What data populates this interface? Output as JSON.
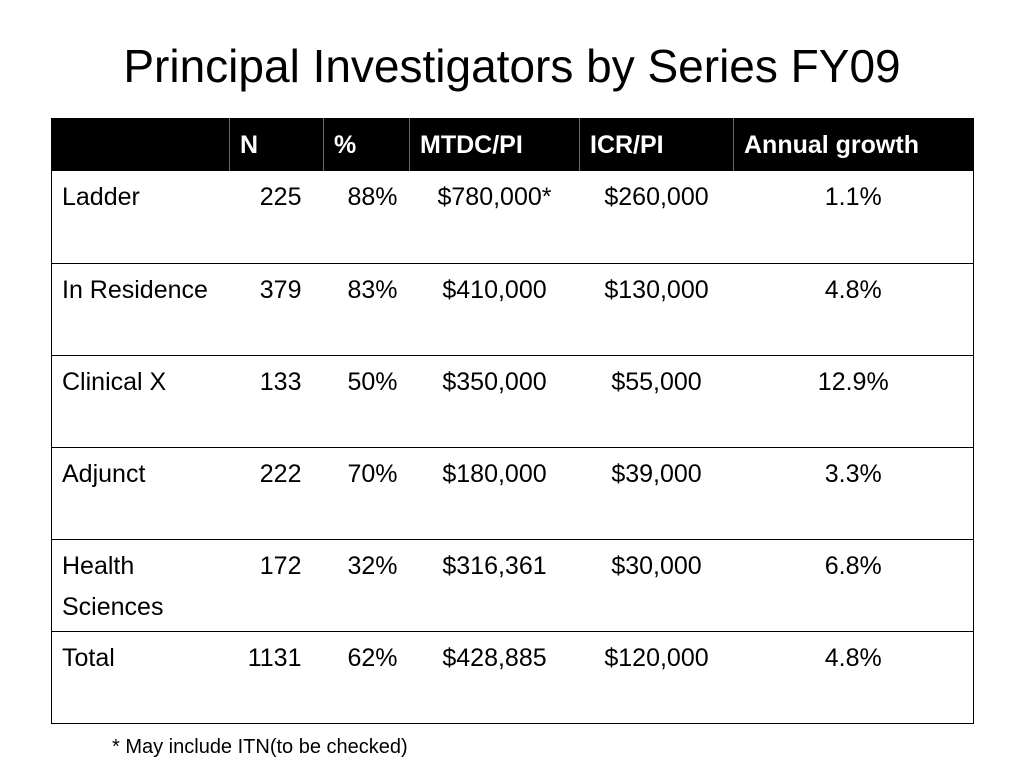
{
  "title": "Principal Investigators by Series FY09",
  "table": {
    "headers": [
      "",
      "N",
      "%",
      "MTDC/PI",
      "ICR/PI",
      "Annual growth"
    ],
    "rows": [
      {
        "label": "Ladder",
        "n": "225",
        "pct": "88%",
        "mtdc": "$780,000*",
        "icr": "$260,000",
        "growth": "1.1%"
      },
      {
        "label": "In Residence",
        "n": "379",
        "pct": "83%",
        "mtdc": "$410,000",
        "icr": "$130,000",
        "growth": "4.8%"
      },
      {
        "label": "Clinical X",
        "n": "133",
        "pct": "50%",
        "mtdc": "$350,000",
        "icr": "$55,000",
        "growth": "12.9%"
      },
      {
        "label": "Adjunct",
        "n": "222",
        "pct": "70%",
        "mtdc": "$180,000",
        "icr": "$39,000",
        "growth": "3.3%"
      },
      {
        "label": "Health Sciences",
        "n": "172",
        "pct": "32%",
        "mtdc": "$316,361",
        "icr": "$30,000",
        "growth": "6.8%"
      },
      {
        "label": "Total",
        "n": "1131",
        "pct": "62%",
        "mtdc": "$428,885",
        "icr": "$120,000",
        "growth": "4.8%"
      }
    ]
  },
  "footnote": "* May include ITN(to be checked)"
}
